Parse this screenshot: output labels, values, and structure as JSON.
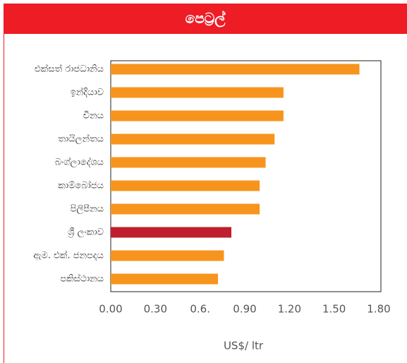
{
  "chart_data": {
    "type": "barh",
    "title": "පෙට්‍රල්",
    "categories": [
      "එක්සත් රාජධානිය",
      "ඉන්දියාව",
      "චීනය",
      "තායිලන්තය",
      "බංග්ලාදේශය",
      "කාම්බෝජය",
      "පිලිපීනය",
      "ශ්‍රී ලංකාව",
      "ඇම. එක්. ජනපදය",
      "පකිස්ථානය"
    ],
    "values": [
      1.67,
      1.16,
      1.16,
      1.1,
      1.04,
      1.0,
      1.0,
      0.81,
      0.76,
      0.72
    ],
    "colors": [
      "#f7941d",
      "#f7941d",
      "#f7941d",
      "#f7941d",
      "#f7941d",
      "#f7941d",
      "#f7941d",
      "#be1e2d",
      "#f7941d",
      "#f7941d"
    ],
    "xlim": [
      0,
      1.8
    ],
    "xticks": [
      {
        "value": 0,
        "label": "0.00"
      },
      {
        "value": 0.3,
        "label": "0.30"
      },
      {
        "value": 0.6,
        "label": "0.6."
      },
      {
        "value": 0.9,
        "label": "0.90"
      },
      {
        "value": 1.2,
        "label": "1.20"
      },
      {
        "value": 1.5,
        "label": "1.50"
      },
      {
        "value": 1.8,
        "label": "1.80"
      }
    ],
    "x_label": "US$/ ltr",
    "grid": false
  }
}
